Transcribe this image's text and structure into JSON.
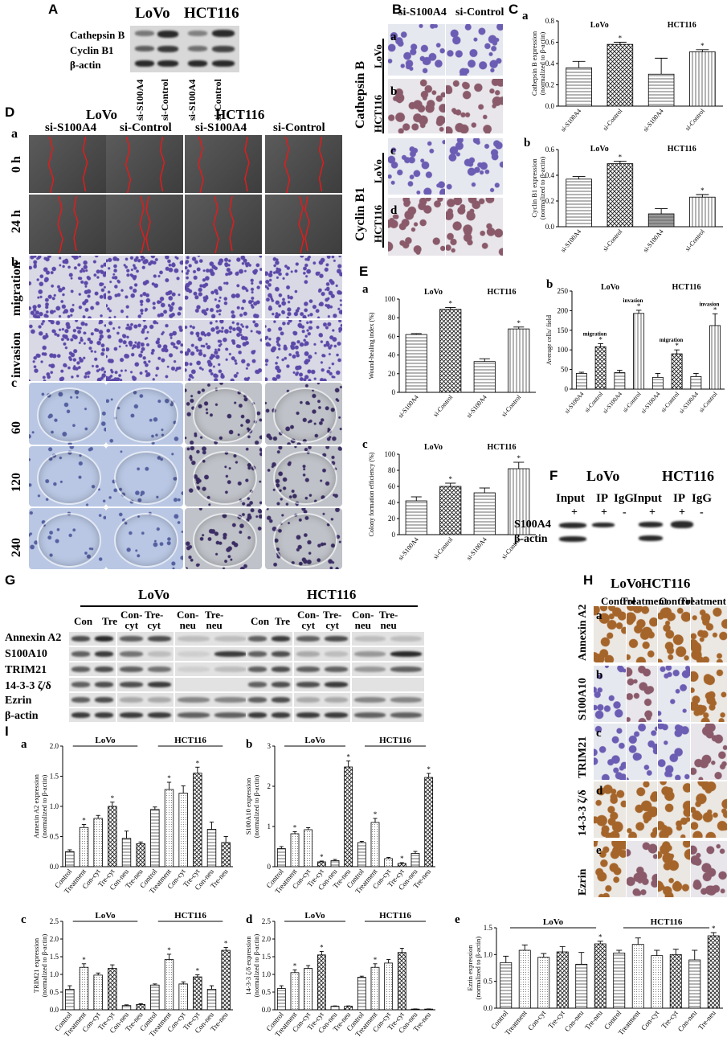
{
  "colors": {
    "wound_line": "#e31b1b",
    "stain_blue": "#6b5db3",
    "stain_brown": "#a5652a"
  },
  "panelA": {
    "label": "A",
    "cells": [
      "LoVo",
      "HCT116"
    ],
    "rows": [
      "Cathepsin B",
      "Cyclin B1",
      "β-actin"
    ],
    "lanes": [
      "si-S100A4",
      "si-Control",
      "si-S100A4",
      "si-Control"
    ]
  },
  "panelB": {
    "label": "B",
    "cols": [
      "si-S100A4",
      "si-Control"
    ],
    "subs": [
      "a",
      "b",
      "c",
      "d"
    ],
    "group1": "Cathepsin B",
    "group2": "Cyclin B1",
    "cell1": "LoVo",
    "cell2": "HCT116"
  },
  "panelC": {
    "label": "C"
  },
  "panelD": {
    "label": "D",
    "cells": [
      "LoVo",
      "HCT116"
    ],
    "cols": [
      "si-S100A4",
      "si-Control",
      "si-S100A4",
      "si-Control"
    ],
    "subs": [
      "a",
      "b",
      "c"
    ],
    "rows": [
      "0 h",
      "24 h",
      "migration",
      "invasion",
      "60",
      "120",
      "240"
    ]
  },
  "panelE": {
    "label": "E"
  },
  "panelF": {
    "label": "F",
    "cells": [
      "LoVo",
      "HCT116"
    ],
    "cols": [
      "Input",
      "IP",
      "IgG"
    ],
    "marks": [
      "+",
      "+",
      "-"
    ],
    "rows": [
      "S100A4",
      "β-actin"
    ]
  },
  "panelG": {
    "label": "G",
    "cells": [
      "LoVo",
      "HCT116"
    ],
    "lanes": [
      "Con",
      "Tre",
      "Con-\ncyt",
      "Tre-\ncyt",
      "Con-\nneu",
      "Tre-\nneu"
    ],
    "rows": [
      "Annexin A2",
      "S100A10",
      "TRIM21",
      "14-3-3 ζ/δ",
      "Ezrin",
      "β-actin"
    ]
  },
  "panelH": {
    "label": "H",
    "cells": [
      "LoVo",
      "HCT116"
    ],
    "cols": [
      "Control",
      "Treatment",
      "Control",
      "Treatment"
    ],
    "subs": [
      "a",
      "b",
      "c",
      "d",
      "e"
    ],
    "rows": [
      "Annexin A2",
      "S100A10",
      "TRIM21",
      "14-3-3 ζ/δ",
      "Ezrin"
    ]
  },
  "panelI": {
    "label": "I"
  },
  "chart_data": [
    {
      "id": "Ca",
      "type": "bar",
      "sub": "a",
      "ylabel": "Cathepsin B expression\n(normalized to β-actin)",
      "groups": [
        "LoVo",
        "HCT116"
      ],
      "categories": [
        "si-S100A4",
        "si-Control",
        "si-S100A4",
        "si-Control"
      ],
      "values": [
        0.36,
        0.58,
        0.3,
        0.51
      ],
      "errors": [
        0.06,
        0.02,
        0.15,
        0.02
      ],
      "sig": [
        false,
        true,
        false,
        true
      ],
      "ylim": [
        0,
        0.8
      ],
      "yticks": [
        "0.0",
        "0.2",
        "0.4",
        "0.6",
        "0.8"
      ]
    },
    {
      "id": "Cb",
      "type": "bar",
      "sub": "b",
      "ylabel": "Cyclin B1 expression\n(normalized to β-actin)",
      "groups": [
        "LoVo",
        "HCT116"
      ],
      "categories": [
        "si-S100A4",
        "si-Control",
        "si-S100A4",
        "si-Control"
      ],
      "values": [
        0.37,
        0.49,
        0.1,
        0.23
      ],
      "errors": [
        0.02,
        0.02,
        0.04,
        0.02
      ],
      "sig": [
        false,
        true,
        false,
        true
      ],
      "ylim": [
        0,
        0.6
      ],
      "yticks": [
        "0.0",
        "0.2",
        "0.4",
        "0.6"
      ]
    },
    {
      "id": "Ea",
      "type": "bar",
      "sub": "a",
      "ylabel": "Wound-healing index (%)",
      "groups": [
        "LoVo",
        "HCT116"
      ],
      "categories": [
        "si-S100A4",
        "si-Control",
        "si-S100A4",
        "si-Control"
      ],
      "values": [
        62,
        89,
        33,
        68
      ],
      "errors": [
        1,
        2,
        3,
        2
      ],
      "sig": [
        false,
        true,
        false,
        true
      ],
      "ylim": [
        0,
        100
      ],
      "yticks": [
        "0",
        "20",
        "40",
        "60",
        "80",
        "100"
      ]
    },
    {
      "id": "Eb",
      "type": "bar",
      "sub": "b",
      "ylabel": "Average cells/ field",
      "groups": [
        "LoVo",
        "HCT116"
      ],
      "annotations": [
        "migration",
        "invasion",
        "migration",
        "invasion"
      ],
      "categories": [
        "si-S100A4",
        "si-Control",
        "si-S100A4",
        "si-Control",
        "si-S100A4",
        "si-Control",
        "si-S100A4",
        "si-Control"
      ],
      "values": [
        40,
        108,
        42,
        193,
        30,
        90,
        32,
        162
      ],
      "errors": [
        3,
        8,
        6,
        8,
        10,
        10,
        8,
        30
      ],
      "sig": [
        false,
        true,
        false,
        true,
        false,
        true,
        false,
        true
      ],
      "ylim": [
        0,
        250
      ],
      "yticks": [
        "0",
        "50",
        "100",
        "150",
        "200",
        "250"
      ]
    },
    {
      "id": "Ec",
      "type": "bar",
      "sub": "c",
      "ylabel": "Colony formation efficiency (%)",
      "groups": [
        "LoVo",
        "HCT116"
      ],
      "categories": [
        "si-S100A4",
        "si-Control",
        "si-S100A4",
        "si-Control"
      ],
      "values": [
        42,
        60,
        52,
        82
      ],
      "errors": [
        5,
        4,
        6,
        8
      ],
      "sig": [
        false,
        true,
        false,
        true
      ],
      "ylim": [
        0,
        100
      ],
      "yticks": [
        "0",
        "20",
        "40",
        "60",
        "80",
        "100"
      ]
    },
    {
      "id": "Ia",
      "type": "bar",
      "sub": "a",
      "ylabel": "Annexin A2 expression\n(normalized to β-actin)",
      "groups": [
        "LoVo",
        "HCT116"
      ],
      "categories": [
        "Control",
        "Treatment",
        "Con-cyt",
        "Tre-cyt",
        "Con-neu",
        "Tre-neu",
        "Control",
        "Treatment",
        "Con-cyt",
        "Tre-cyt",
        "Con-neu",
        "Tre-neu"
      ],
      "values": [
        0.25,
        0.65,
        0.8,
        1.0,
        0.47,
        0.38,
        0.95,
        1.28,
        1.22,
        1.55,
        0.62,
        0.4
      ],
      "errors": [
        0.03,
        0.05,
        0.05,
        0.07,
        0.12,
        0.03,
        0.04,
        0.12,
        0.12,
        0.1,
        0.12,
        0.1
      ],
      "sig": [
        false,
        true,
        false,
        true,
        false,
        false,
        false,
        true,
        false,
        true,
        false,
        false
      ],
      "ylim": [
        0,
        2.0
      ],
      "yticks": [
        "0.0",
        "0.5",
        "1.0",
        "1.5",
        "2.0"
      ]
    },
    {
      "id": "Ib",
      "type": "bar",
      "sub": "b",
      "ylabel": "S100A10 expression\n(normalized to β-actin)",
      "groups": [
        "LoVo",
        "HCT116"
      ],
      "categories": [
        "Control",
        "Treatment",
        "Con-cyt",
        "Tre-cyt",
        "Con-neu",
        "Tre-neu",
        "Control",
        "Treatment",
        "Con-cyt",
        "Tre-cyt",
        "Con-neu",
        "Tre-neu"
      ],
      "values": [
        0.45,
        0.82,
        0.92,
        0.12,
        0.15,
        2.48,
        0.6,
        1.1,
        0.2,
        0.08,
        0.33,
        2.22
      ],
      "errors": [
        0.05,
        0.05,
        0.05,
        0.02,
        0.03,
        0.15,
        0.03,
        0.1,
        0.03,
        0.02,
        0.05,
        0.1
      ],
      "sig": [
        false,
        true,
        false,
        true,
        false,
        true,
        false,
        true,
        false,
        true,
        false,
        true
      ],
      "ylim": [
        0,
        3
      ],
      "yticks": [
        "0",
        "1",
        "2",
        "3"
      ]
    },
    {
      "id": "Ic",
      "type": "bar",
      "sub": "c",
      "ylabel": "TRIM21 expression\n(normalized to β-actin)",
      "groups": [
        "LoVo",
        "HCT116"
      ],
      "categories": [
        "Control",
        "Treatment",
        "Con-cyt",
        "Tre-cyt",
        "Con-neu",
        "Tre-neu",
        "Control",
        "Treatment",
        "Con-cyt",
        "Tre-cyt",
        "Con-neu",
        "Tre-neu"
      ],
      "values": [
        0.58,
        1.2,
        0.98,
        1.17,
        0.12,
        0.15,
        0.7,
        1.42,
        0.73,
        0.93,
        0.58,
        1.68
      ],
      "errors": [
        0.1,
        0.1,
        0.06,
        0.1,
        0.02,
        0.02,
        0.03,
        0.15,
        0.06,
        0.06,
        0.1,
        0.08
      ],
      "sig": [
        false,
        true,
        false,
        false,
        false,
        false,
        false,
        true,
        false,
        true,
        false,
        true
      ],
      "ylim": [
        0,
        2.5
      ],
      "yticks": [
        "0.0",
        "0.5",
        "1.0",
        "1.5",
        "2.0",
        "2.5"
      ]
    },
    {
      "id": "Id",
      "type": "bar",
      "sub": "d",
      "ylabel": "14-3-3 ζ/δ expression\n(normalized to β-actin)",
      "groups": [
        "LoVo",
        "HCT116"
      ],
      "categories": [
        "Control",
        "Treatment",
        "Con-cyt",
        "Tre-cyt",
        "Con-neu",
        "Tre-neu",
        "Control",
        "Treatment",
        "Con-cyt",
        "Tre-cyt",
        "Con-neu",
        "Tre-neu"
      ],
      "values": [
        0.6,
        1.05,
        1.17,
        1.55,
        0.1,
        0.1,
        0.92,
        1.2,
        1.32,
        1.62,
        0.02,
        0.02
      ],
      "errors": [
        0.08,
        0.08,
        0.08,
        0.1,
        0.01,
        0.01,
        0.03,
        0.1,
        0.1,
        0.12,
        0.005,
        0.005
      ],
      "sig": [
        false,
        true,
        false,
        true,
        false,
        false,
        false,
        true,
        false,
        false,
        false,
        false
      ],
      "ylim": [
        0,
        2.5
      ],
      "yticks": [
        "0.0",
        "0.5",
        "1.0",
        "1.5",
        "2.0",
        "2.5"
      ]
    },
    {
      "id": "Ie",
      "type": "bar",
      "sub": "e",
      "ylabel": "Ezrin expression\n(normalized to β-actin)",
      "groups": [
        "LoVo",
        "HCT116"
      ],
      "categories": [
        "Control",
        "Treatment",
        "Con-cyt",
        "Tre-cyt",
        "Con-neu",
        "Tre-neu",
        "Control",
        "Treatment",
        "Con-cyt",
        "Tre-cyt",
        "Con-neu",
        "Tre-neu"
      ],
      "values": [
        0.85,
        1.08,
        0.95,
        1.05,
        0.82,
        1.2,
        1.03,
        1.19,
        0.98,
        1.0,
        0.9,
        1.35
      ],
      "errors": [
        0.12,
        0.1,
        0.07,
        0.1,
        0.22,
        0.05,
        0.05,
        0.12,
        0.1,
        0.1,
        0.18,
        0.06
      ],
      "sig": [
        false,
        false,
        false,
        false,
        false,
        true,
        false,
        false,
        false,
        false,
        false,
        true
      ],
      "ylim": [
        0,
        1.5
      ],
      "yticks": [
        "0.0",
        "0.5",
        "1.0",
        "1.5"
      ]
    }
  ]
}
